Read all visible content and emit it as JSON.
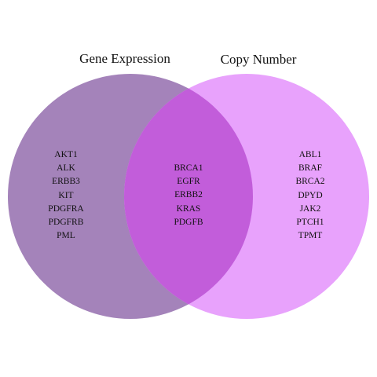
{
  "diagram": {
    "type": "venn",
    "sets": [
      {
        "name": "Gene Expression",
        "color": "#A483BA"
      },
      {
        "name": "Copy Number",
        "color": "#E8A2FC"
      }
    ],
    "overlap_color": "#C25DDA",
    "regions": {
      "gene_expression_only": [
        "AKT1",
        "ALK",
        "ERBB3",
        "KIT",
        "PDGFRA",
        "PDGFRB",
        "PML"
      ],
      "both": [
        "BRCA1",
        "EGFR",
        "ERBB2",
        "KRAS",
        "PDGFB"
      ],
      "copy_number_only": [
        "ABL1",
        "BRAF",
        "BRCA2",
        "DPYD",
        "JAK2",
        "PTCH1",
        "TPMT"
      ]
    }
  }
}
